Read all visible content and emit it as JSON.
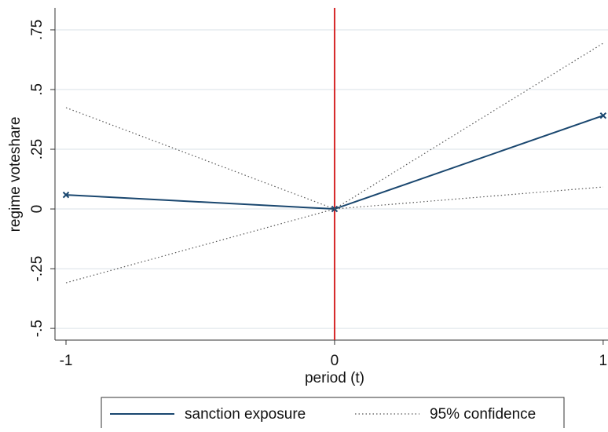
{
  "chart_data": {
    "type": "line",
    "x": [
      -1,
      0,
      1
    ],
    "xlim": [
      -1.041,
      1.018
    ],
    "ylim": [
      -0.549,
      0.842
    ],
    "xticks": [
      -1,
      0,
      1
    ],
    "yticks": [
      {
        "value": 0.75,
        "label": ".75"
      },
      {
        "value": 0.5,
        "label": ".5"
      },
      {
        "value": 0.25,
        "label": ".25"
      },
      0,
      {
        "value": -0.25,
        "label": "-.25"
      },
      {
        "value": -0.5,
        "label": "-.5"
      }
    ],
    "xlabel": "period (t)",
    "ylabel": "regime voteshare",
    "grid": true,
    "xline": {
      "value": 0,
      "color": "#d62728"
    },
    "series": [
      {
        "name": "sanction exposure",
        "color": "#1a476f",
        "values": [
          0.059,
          0,
          0.391
        ]
      },
      {
        "name": "95% confidence",
        "color": "#555555",
        "upper": [
          0.424,
          0,
          0.694
        ],
        "lower": [
          -0.309,
          0,
          0.092
        ]
      }
    ]
  }
}
